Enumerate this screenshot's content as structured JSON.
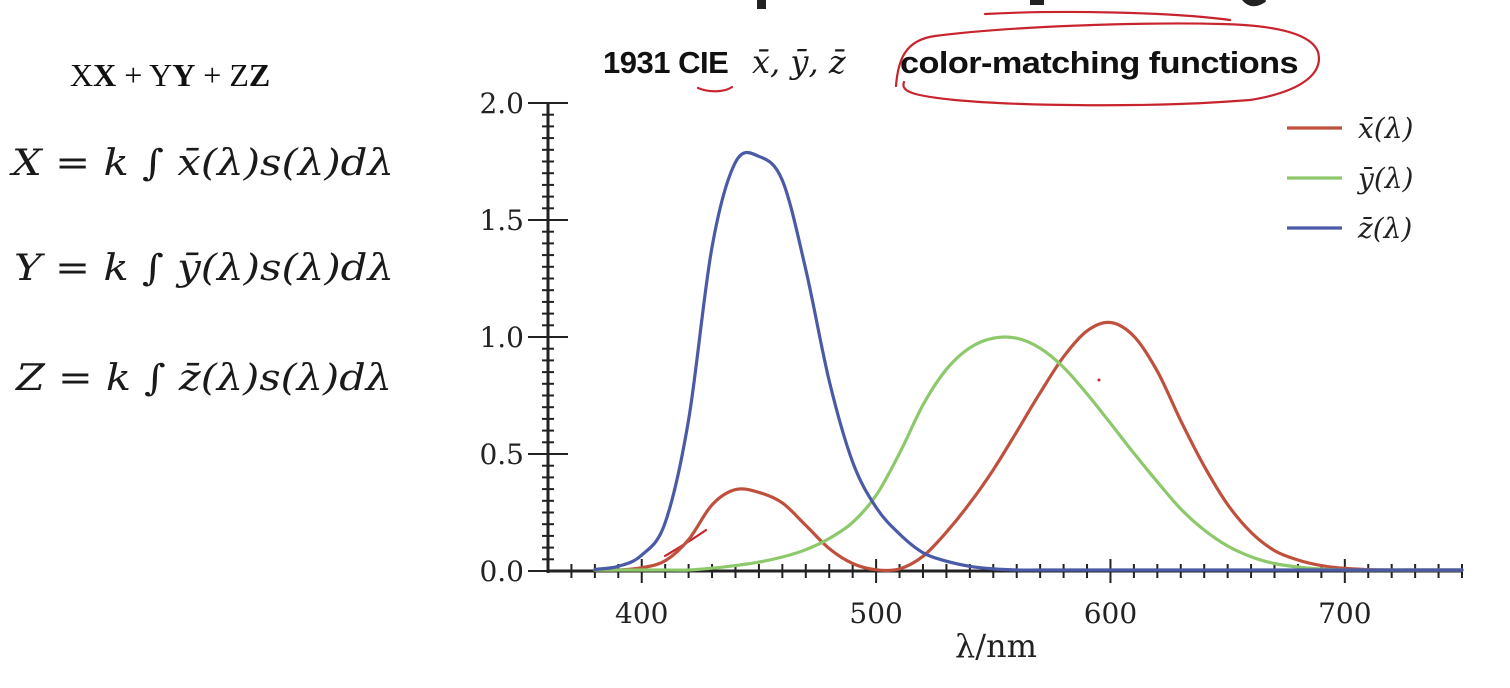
{
  "slide": {
    "top_banner": "                                             "
  },
  "equations": {
    "combo": {
      "a": "X",
      "b": "X",
      "plus1": " + ",
      "c": "Y",
      "d": "Y",
      "plus2": " + ",
      "e": "Z",
      "f": "Z"
    },
    "x_eq": "X = k ∫ x̄(λ)s(λ)dλ",
    "y_eq": "Y = k ∫ ȳ(λ)s(λ)dλ",
    "z_eq": "Z = k ∫ z̄(λ)s(λ)dλ"
  },
  "chart_data": {
    "type": "line",
    "title_prefix": "1931 CIE",
    "title_math": "x̄, ȳ, z̄",
    "title": "color-matching functions",
    "xlabel": "λ/nm",
    "ylabel": "",
    "xlim": [
      360,
      750
    ],
    "ylim": [
      0,
      2.0
    ],
    "x_ticks": [
      400,
      500,
      600,
      700
    ],
    "y_ticks": [
      0.0,
      0.5,
      1.0,
      1.5,
      2.0
    ],
    "y_tick_labels": [
      "0.0",
      "0.5",
      "1.0",
      "1.5",
      "2.0"
    ],
    "grid": false,
    "legend_position": "top-right",
    "x": [
      380,
      390,
      400,
      410,
      420,
      430,
      440,
      450,
      460,
      470,
      480,
      490,
      500,
      510,
      520,
      530,
      540,
      550,
      560,
      570,
      580,
      590,
      600,
      610,
      620,
      630,
      640,
      650,
      660,
      670,
      680,
      690,
      700,
      710,
      720,
      730,
      740,
      750
    ],
    "series": [
      {
        "name": "x̄(λ)",
        "color": "#c0503e",
        "values": [
          0.001,
          0.004,
          0.014,
          0.044,
          0.134,
          0.283,
          0.348,
          0.336,
          0.291,
          0.195,
          0.096,
          0.032,
          0.005,
          0.009,
          0.063,
          0.166,
          0.29,
          0.433,
          0.595,
          0.762,
          0.916,
          1.026,
          1.062,
          1.003,
          0.854,
          0.642,
          0.448,
          0.284,
          0.165,
          0.087,
          0.047,
          0.023,
          0.011,
          0.006,
          0.003,
          0.001,
          0.001,
          0.0
        ]
      },
      {
        "name": "ȳ(λ)",
        "color": "#8dc86a",
        "values": [
          0.0,
          0.0,
          0.0,
          0.001,
          0.004,
          0.012,
          0.023,
          0.038,
          0.06,
          0.091,
          0.139,
          0.208,
          0.323,
          0.503,
          0.71,
          0.862,
          0.954,
          0.995,
          0.995,
          0.952,
          0.87,
          0.757,
          0.631,
          0.503,
          0.381,
          0.265,
          0.175,
          0.107,
          0.061,
          0.032,
          0.017,
          0.008,
          0.004,
          0.002,
          0.001,
          0.001,
          0.0,
          0.0
        ]
      },
      {
        "name": "z̄(λ)",
        "color": "#4a5aa6",
        "values": [
          0.007,
          0.02,
          0.068,
          0.207,
          0.646,
          1.386,
          1.747,
          1.772,
          1.669,
          1.288,
          0.813,
          0.465,
          0.272,
          0.158,
          0.078,
          0.042,
          0.02,
          0.009,
          0.004,
          0.002,
          0.002,
          0.001,
          0.001,
          0.0,
          0.0,
          0.0,
          0.0,
          0.0,
          0.0,
          0.0,
          0.0,
          0.0,
          0.0,
          0.0,
          0.0,
          0.0,
          0.0,
          0.0
        ]
      }
    ],
    "annotations": [
      {
        "type": "ellipse",
        "target": "title",
        "color": "#c8242d"
      },
      {
        "type": "underline",
        "target": "CIE",
        "color": "#c8242d"
      },
      {
        "type": "underline",
        "target": "top-banner",
        "color": "#c8242d"
      }
    ]
  }
}
